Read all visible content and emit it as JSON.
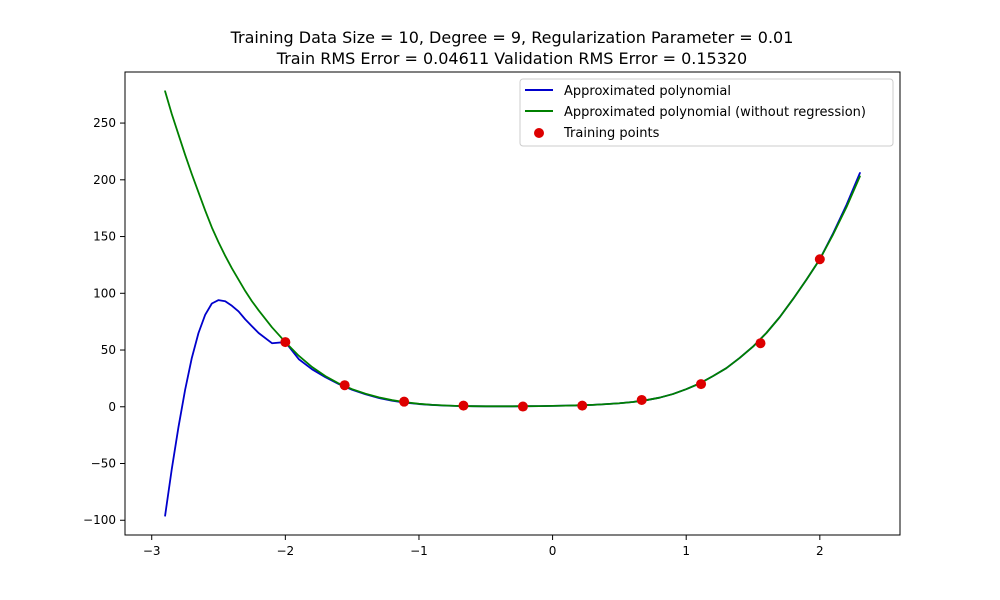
{
  "chart_data": {
    "type": "line",
    "title_line1": "Training Data Size = 10, Degree = 9, Regularization Parameter = 0.01",
    "title_line2": "Train RMS Error = 0.04611 Validation RMS Error = 0.15320",
    "xlabel": "",
    "ylabel": "",
    "xlim": [
      -3.2,
      2.6
    ],
    "ylim": [
      -113,
      295
    ],
    "x_ticks": [
      -3,
      -2,
      -1,
      0,
      1,
      2
    ],
    "x_tick_labels": [
      "−3",
      "−2",
      "−1",
      "0",
      "1",
      "2"
    ],
    "y_ticks": [
      -100,
      -50,
      0,
      50,
      100,
      150,
      200,
      250
    ],
    "y_tick_labels": [
      "−100",
      "−50",
      "0",
      "50",
      "100",
      "150",
      "200",
      "250"
    ],
    "grid": false,
    "legend_position": "top-right",
    "series": [
      {
        "name": "Approximated polynomial",
        "color": "#0000cc",
        "x": [
          -2.9,
          -2.85,
          -2.8,
          -2.75,
          -2.7,
          -2.65,
          -2.6,
          -2.55,
          -2.5,
          -2.45,
          -2.4,
          -2.35,
          -2.3,
          -2.25,
          -2.2,
          -2.1,
          -2.0,
          -1.9,
          -1.8,
          -1.7,
          -1.6,
          -1.5,
          -1.4,
          -1.3,
          -1.2,
          -1.1,
          -1.0,
          -0.9,
          -0.8,
          -0.7,
          -0.6,
          -0.5,
          -0.4,
          -0.3,
          -0.2,
          -0.1,
          0.0,
          0.1,
          0.2,
          0.3,
          0.4,
          0.5,
          0.6,
          0.7,
          0.8,
          0.9,
          1.0,
          1.1,
          1.2,
          1.3,
          1.4,
          1.5,
          1.6,
          1.7,
          1.8,
          1.9,
          2.0,
          2.1,
          2.2,
          2.3
        ],
        "y": [
          -96,
          -55,
          -18,
          15,
          43,
          65,
          81,
          91,
          94,
          93,
          89,
          84,
          77,
          71,
          65,
          56,
          57,
          42,
          33,
          26,
          20,
          15,
          11,
          7.7,
          5.3,
          3.6,
          2.4,
          1.6,
          1.0,
          0.7,
          0.5,
          0.4,
          0.4,
          0.4,
          0.5,
          0.6,
          0.8,
          1.0,
          1.3,
          1.7,
          2.3,
          3.1,
          4.2,
          5.8,
          8.0,
          11.2,
          15.5,
          20.5,
          27,
          34,
          43,
          53,
          65,
          79,
          95,
          112,
          130,
          153,
          178,
          206
        ]
      },
      {
        "name": "Approximated polynomial (without regression)",
        "color": "#008000",
        "x": [
          -2.9,
          -2.85,
          -2.8,
          -2.75,
          -2.7,
          -2.65,
          -2.6,
          -2.55,
          -2.5,
          -2.45,
          -2.4,
          -2.35,
          -2.3,
          -2.25,
          -2.2,
          -2.1,
          -2.0,
          -1.9,
          -1.8,
          -1.7,
          -1.6,
          -1.5,
          -1.4,
          -1.3,
          -1.2,
          -1.1,
          -1.0,
          -0.9,
          -0.8,
          -0.7,
          -0.6,
          -0.5,
          -0.4,
          -0.3,
          -0.2,
          -0.1,
          0.0,
          0.1,
          0.2,
          0.3,
          0.4,
          0.5,
          0.6,
          0.7,
          0.8,
          0.9,
          1.0,
          1.1,
          1.2,
          1.3,
          1.4,
          1.5,
          1.6,
          1.7,
          1.8,
          1.9,
          2.0,
          2.1,
          2.2,
          2.3
        ],
        "y": [
          278,
          258,
          240,
          222,
          205,
          189,
          173,
          158,
          145,
          133,
          122,
          112,
          102,
          93,
          85,
          70,
          57,
          45,
          35,
          27,
          20.5,
          15.5,
          11.5,
          8.3,
          5.8,
          4.0,
          2.6,
          1.7,
          1.1,
          0.7,
          0.5,
          0.4,
          0.4,
          0.4,
          0.5,
          0.6,
          0.8,
          1.0,
          1.3,
          1.7,
          2.3,
          3.1,
          4.2,
          5.8,
          8.0,
          11.2,
          15.5,
          20.5,
          27,
          34,
          43,
          53,
          65,
          79,
          95,
          112,
          130,
          152,
          176,
          203
        ]
      }
    ],
    "points": {
      "name": "Training points",
      "color": "#dd0000",
      "x": [
        -2.0,
        -1.556,
        -1.111,
        -0.667,
        -0.222,
        0.222,
        0.667,
        1.111,
        1.556,
        2.0
      ],
      "y": [
        57,
        19,
        4.5,
        1,
        0.2,
        1,
        6,
        20,
        56,
        130
      ]
    }
  }
}
